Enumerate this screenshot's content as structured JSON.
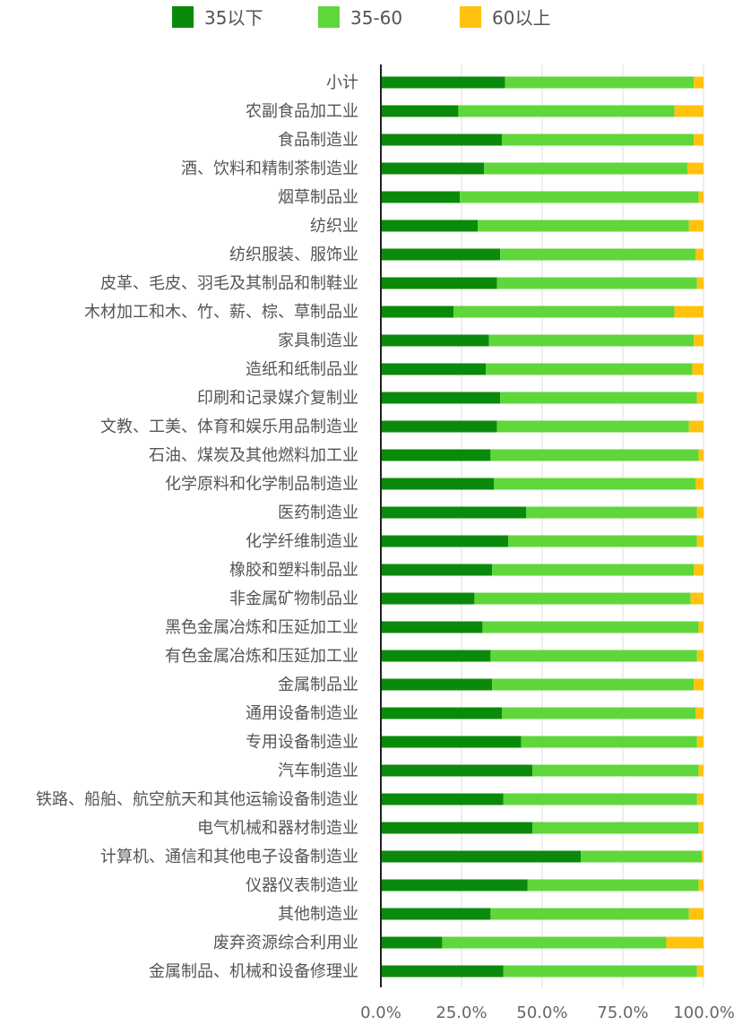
{
  "chart_data": {
    "type": "bar",
    "orientation": "horizontal",
    "stacked": true,
    "normalized": true,
    "categories": [
      "小计",
      "农副食品加工业",
      "食品制造业",
      "酒、饮料和精制茶制造业",
      "烟草制品业",
      "纺织业",
      "纺织服装、服饰业",
      "皮革、毛皮、羽毛及其制品和制鞋业",
      "木材加工和木、竹、薪、棕、草制品业",
      "家具制造业",
      "造纸和纸制品业",
      "印刷和记录媒介复制业",
      "文教、工美、体育和娱乐用品制造业",
      "石油、煤炭及其他燃料加工业",
      "化学原料和化学制品制造业",
      "医药制造业",
      "化学纤维制造业",
      "橡胶和塑料制品业",
      "非金属矿物制品业",
      "黑色金属冶炼和压延加工业",
      "有色金属冶炼和压延加工业",
      "金属制品业",
      "通用设备制造业",
      "专用设备制造业",
      "汽车制造业",
      "铁路、船舶、航空航天和其他运输设备制造业",
      "电气机械和器材制造业",
      "计算机、通信和其他电子设备制造业",
      "仪器仪表制造业",
      "其他制造业",
      "废弃资源综合利用业",
      "金属制品、机械和设备修理业"
    ],
    "series": [
      {
        "name": "35以下",
        "color": "#0a8a0a",
        "values": [
          38.5,
          24,
          37.5,
          32,
          24.5,
          30,
          37,
          36,
          22.5,
          33.5,
          32.5,
          37,
          36,
          34,
          35,
          45,
          39.5,
          34.5,
          29,
          31.5,
          34,
          34.5,
          37.5,
          43.5,
          47,
          38,
          47,
          62,
          45.5,
          34,
          19,
          38
        ]
      },
      {
        "name": "35-60",
        "color": "#5fd63a",
        "values": [
          58.5,
          67,
          59.5,
          63,
          74,
          65.5,
          60.5,
          62,
          68.5,
          63.5,
          64,
          61,
          59.5,
          64.5,
          62.5,
          53,
          58.5,
          62.5,
          67,
          67,
          64,
          62.5,
          60,
          54.5,
          51.5,
          60,
          51.5,
          37.5,
          53,
          61.5,
          69.5,
          60
        ]
      },
      {
        "name": "60以上",
        "color": "#ffc20e",
        "values": [
          3,
          9,
          3,
          5,
          1.5,
          4.5,
          2.5,
          2,
          9,
          3,
          3.5,
          2,
          4.5,
          1.5,
          2.5,
          2,
          2,
          3,
          4,
          1.5,
          2,
          3,
          2.5,
          2,
          1.5,
          2,
          1.5,
          0.5,
          1.5,
          4.5,
          11.5,
          2
        ]
      }
    ],
    "x_axis": {
      "ticks": [
        "0.0%",
        "25.0%",
        "50.0%",
        "75.0%",
        "100.0%"
      ],
      "range": [
        0,
        100
      ]
    },
    "legend": {
      "position": "top"
    },
    "grid": true
  }
}
